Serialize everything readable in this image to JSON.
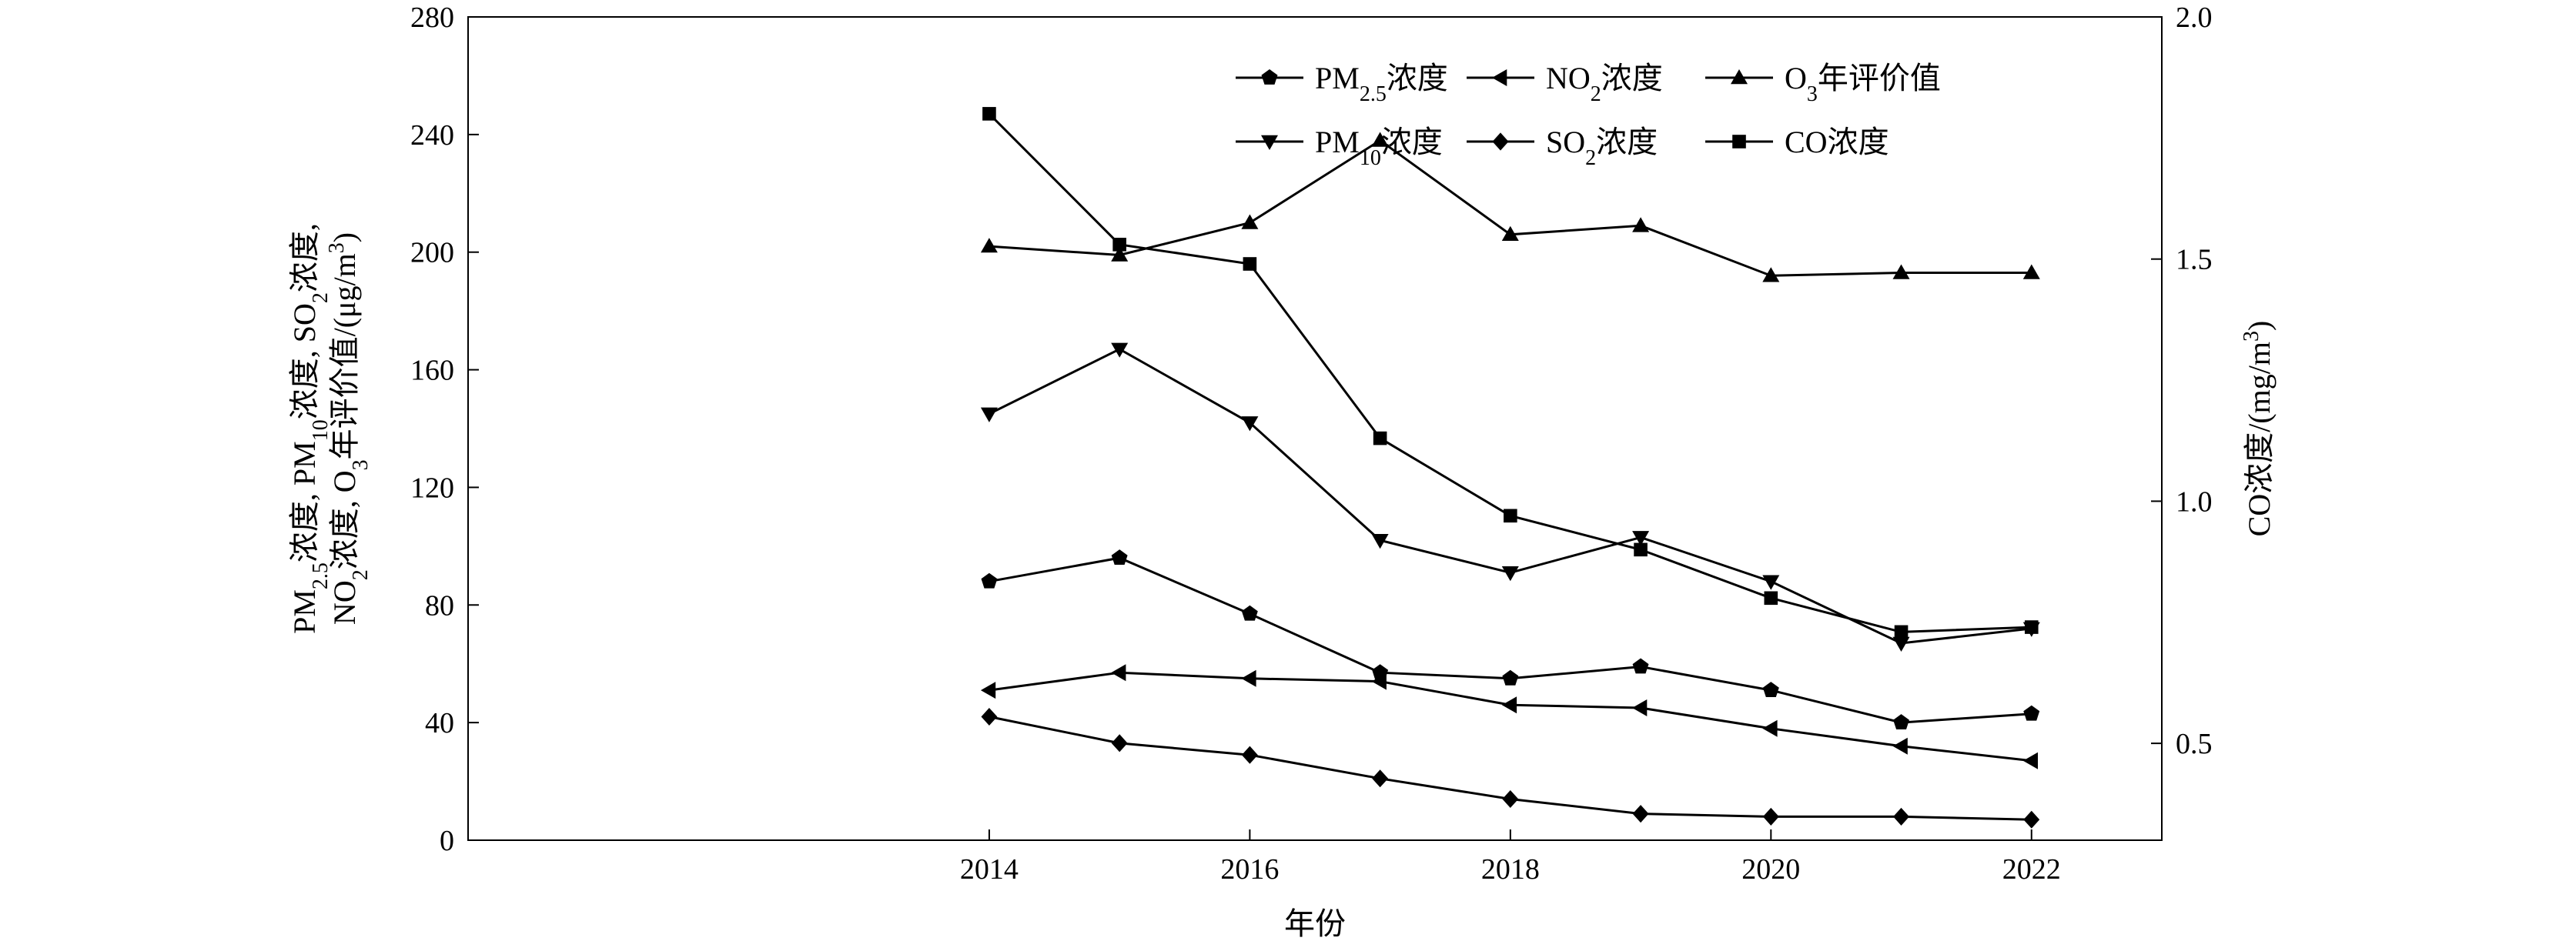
{
  "chart_data": {
    "type": "line",
    "x": [
      2014,
      2015,
      2016,
      2017,
      2018,
      2019,
      2020,
      2021,
      2022
    ],
    "xlim": [
      2010,
      2023
    ],
    "xticks": [
      "2014",
      "2016",
      "2018",
      "2020",
      "2022"
    ],
    "xlabel": "年份",
    "ylabel_left_line1": "PM2.5浓度, PM10浓度, SO2浓度,",
    "ylabel_left_line2": "NO2浓度, O3年评价值/(μg/m3)",
    "ylabel_right": "CO浓度/(mg/m3)",
    "ylim_left": [
      0,
      280
    ],
    "ylim_right": [
      0.3,
      2.0
    ],
    "yticks_left": [
      "0",
      "40",
      "80",
      "120",
      "160",
      "200",
      "240",
      "280"
    ],
    "yticks_right": [
      "0.5",
      "1.0",
      "1.5",
      "2.0"
    ],
    "series": [
      {
        "name": "PM2.5浓度",
        "marker": "pentagon",
        "axis": "left",
        "values": [
          88,
          96,
          77,
          57,
          55,
          59,
          51,
          40,
          43
        ]
      },
      {
        "name": "NO2浓度",
        "marker": "triangle-left",
        "axis": "left",
        "values": [
          51,
          57,
          55,
          54,
          46,
          45,
          38,
          32,
          27
        ]
      },
      {
        "name": "O3年评价值",
        "marker": "triangle-up",
        "axis": "left",
        "values": [
          202,
          199,
          210,
          238,
          206,
          209,
          192,
          193,
          193
        ]
      },
      {
        "name": "PM10浓度",
        "marker": "triangle-down",
        "axis": "left",
        "values": [
          145,
          167,
          142,
          102,
          91,
          103,
          88,
          67,
          72
        ]
      },
      {
        "name": "SO2浓度",
        "marker": "diamond",
        "axis": "left",
        "values": [
          42,
          33,
          29,
          21,
          14,
          9,
          8,
          8,
          7
        ]
      },
      {
        "name": "CO浓度",
        "marker": "square",
        "axis": "right",
        "values": [
          1.8,
          1.53,
          1.49,
          1.13,
          0.97,
          0.9,
          0.8,
          0.73,
          0.74
        ]
      }
    ],
    "legend_position": "top-right",
    "grid": false
  }
}
